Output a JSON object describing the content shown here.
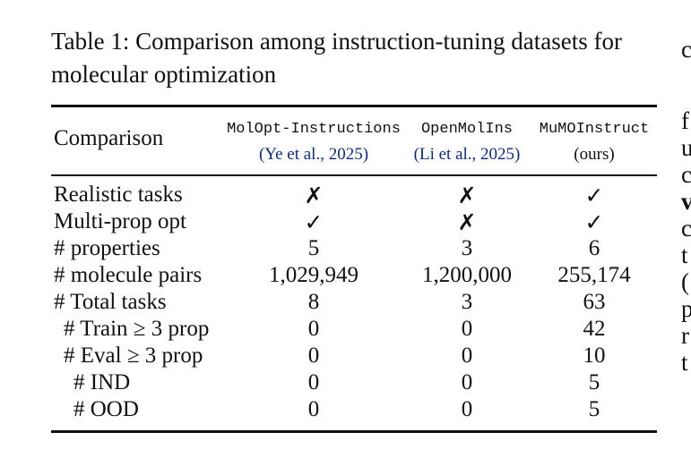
{
  "caption": "Table 1: Comparison among instruction-tuning datasets for molecular optimization",
  "table": {
    "corner_header": "Comparison",
    "columns": [
      {
        "name": "MolOpt-Instructions",
        "citation": "(Ye et al., 2025)"
      },
      {
        "name": "OpenMolIns",
        "citation": "(Li et al., 2025)"
      },
      {
        "name": "MuMOInstruct",
        "citation": "(ours)"
      }
    ],
    "rows": [
      {
        "label": "Realistic tasks",
        "indent": 0,
        "values": [
          "✗",
          "✗",
          "✓"
        ]
      },
      {
        "label": "Multi-prop opt",
        "indent": 0,
        "values": [
          "✓",
          "✗",
          "✓"
        ]
      },
      {
        "label": "# properties",
        "indent": 0,
        "values": [
          "5",
          "3",
          "6"
        ]
      },
      {
        "label": "# molecule pairs",
        "indent": 0,
        "values": [
          "1,029,949",
          "1,200,000",
          "255,174"
        ]
      },
      {
        "label": "# Total tasks",
        "indent": 0,
        "values": [
          "8",
          "3",
          "63"
        ]
      },
      {
        "label": "# Train ≥ 3 prop",
        "indent": 1,
        "values": [
          "0",
          "0",
          "42"
        ]
      },
      {
        "label": "# Eval ≥ 3 prop",
        "indent": 1,
        "values": [
          "0",
          "0",
          "10"
        ]
      },
      {
        "label": "# IND",
        "indent": 2,
        "values": [
          "0",
          "0",
          "5"
        ]
      },
      {
        "label": "# OOD",
        "indent": 2,
        "values": [
          "0",
          "0",
          "5"
        ]
      }
    ]
  },
  "right_margin_fragments": [
    "c",
    "f",
    "u",
    "c",
    "v",
    "c",
    "t",
    "(",
    "p",
    "r",
    "t"
  ]
}
